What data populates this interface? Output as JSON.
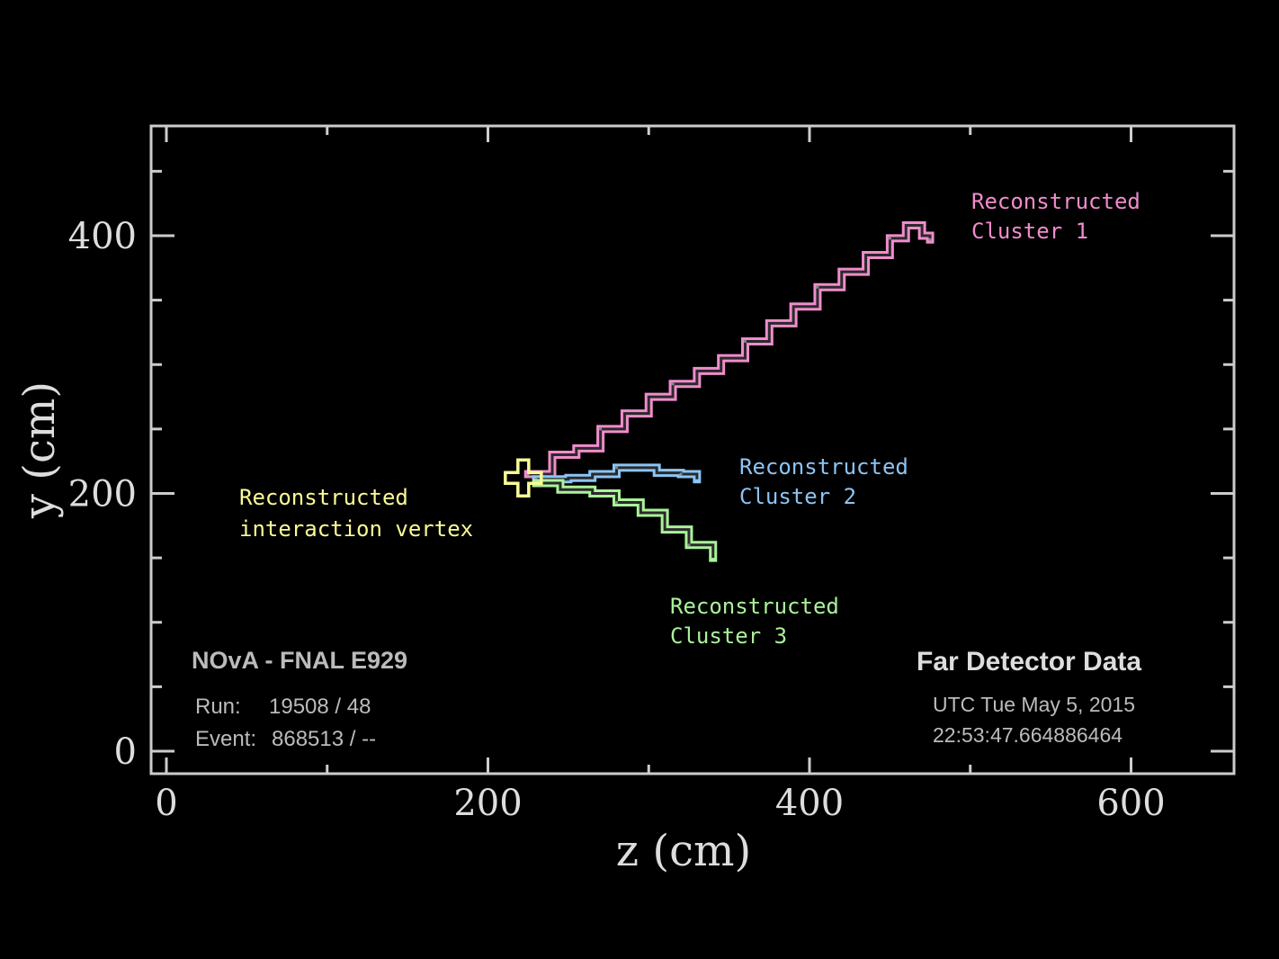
{
  "chart_data": {
    "type": "line",
    "xlabel": "z (cm)",
    "ylabel": "y (cm)",
    "xlim": [
      -10,
      670
    ],
    "ylim": [
      -20,
      500
    ],
    "xticks": [
      0,
      200,
      400,
      600
    ],
    "yticks": [
      0,
      200,
      400
    ],
    "grid": false,
    "series": [
      {
        "name": "Reconstructed Cluster 1",
        "color": "#f08ccc",
        "x": [
          225,
          240,
          255,
          270,
          285,
          300,
          315,
          330,
          345,
          360,
          375,
          390,
          405,
          420,
          435,
          450,
          460,
          470,
          475
        ],
        "y": [
          215,
          230,
          235,
          250,
          262,
          275,
          285,
          295,
          305,
          318,
          332,
          345,
          360,
          372,
          385,
          398,
          408,
          400,
          397
        ]
      },
      {
        "name": "Reconstructed Cluster 2",
        "color": "#8cc4f4",
        "x": [
          230,
          250,
          265,
          280,
          295,
          305,
          320,
          330
        ],
        "y": [
          211,
          212,
          215,
          220,
          220,
          216,
          215,
          211
        ]
      },
      {
        "name": "Reconstructed Cluster 3",
        "color": "#aaf29a",
        "x": [
          230,
          245,
          265,
          280,
          295,
          310,
          325,
          340
        ],
        "y": [
          208,
          203,
          200,
          193,
          185,
          172,
          160,
          150
        ]
      }
    ],
    "vertex": {
      "name": "Reconstructed interaction vertex",
      "x": 222,
      "y": 212,
      "color": "#fafa96"
    },
    "annotations": [
      {
        "id": "cluster1",
        "lines": [
          "Reconstructed",
          "Cluster 1"
        ],
        "color": "#f08ccc"
      },
      {
        "id": "cluster2",
        "lines": [
          "Reconstructed",
          "Cluster 2"
        ],
        "color": "#8cc4f4"
      },
      {
        "id": "cluster3",
        "lines": [
          "Reconstructed",
          "Cluster 3"
        ],
        "color": "#aaf29a"
      },
      {
        "id": "vertex",
        "lines": [
          "Reconstructed",
          "interaction vertex"
        ],
        "color": "#fafa96"
      }
    ]
  },
  "info": {
    "experiment": "NOvA - FNAL E929",
    "run_label": "Run:",
    "run_value": "19508 / 48",
    "event_label": "Event:",
    "event_value": "868513 / --",
    "detector": "Far Detector Data",
    "date": "UTC Tue May 5, 2015",
    "time": "22:53:47.664886464"
  },
  "colors": {
    "frame": "#cccccc",
    "tick_label": "#dddddd",
    "info_text": "#bbbbbb",
    "detector_text": "#dddddd"
  }
}
